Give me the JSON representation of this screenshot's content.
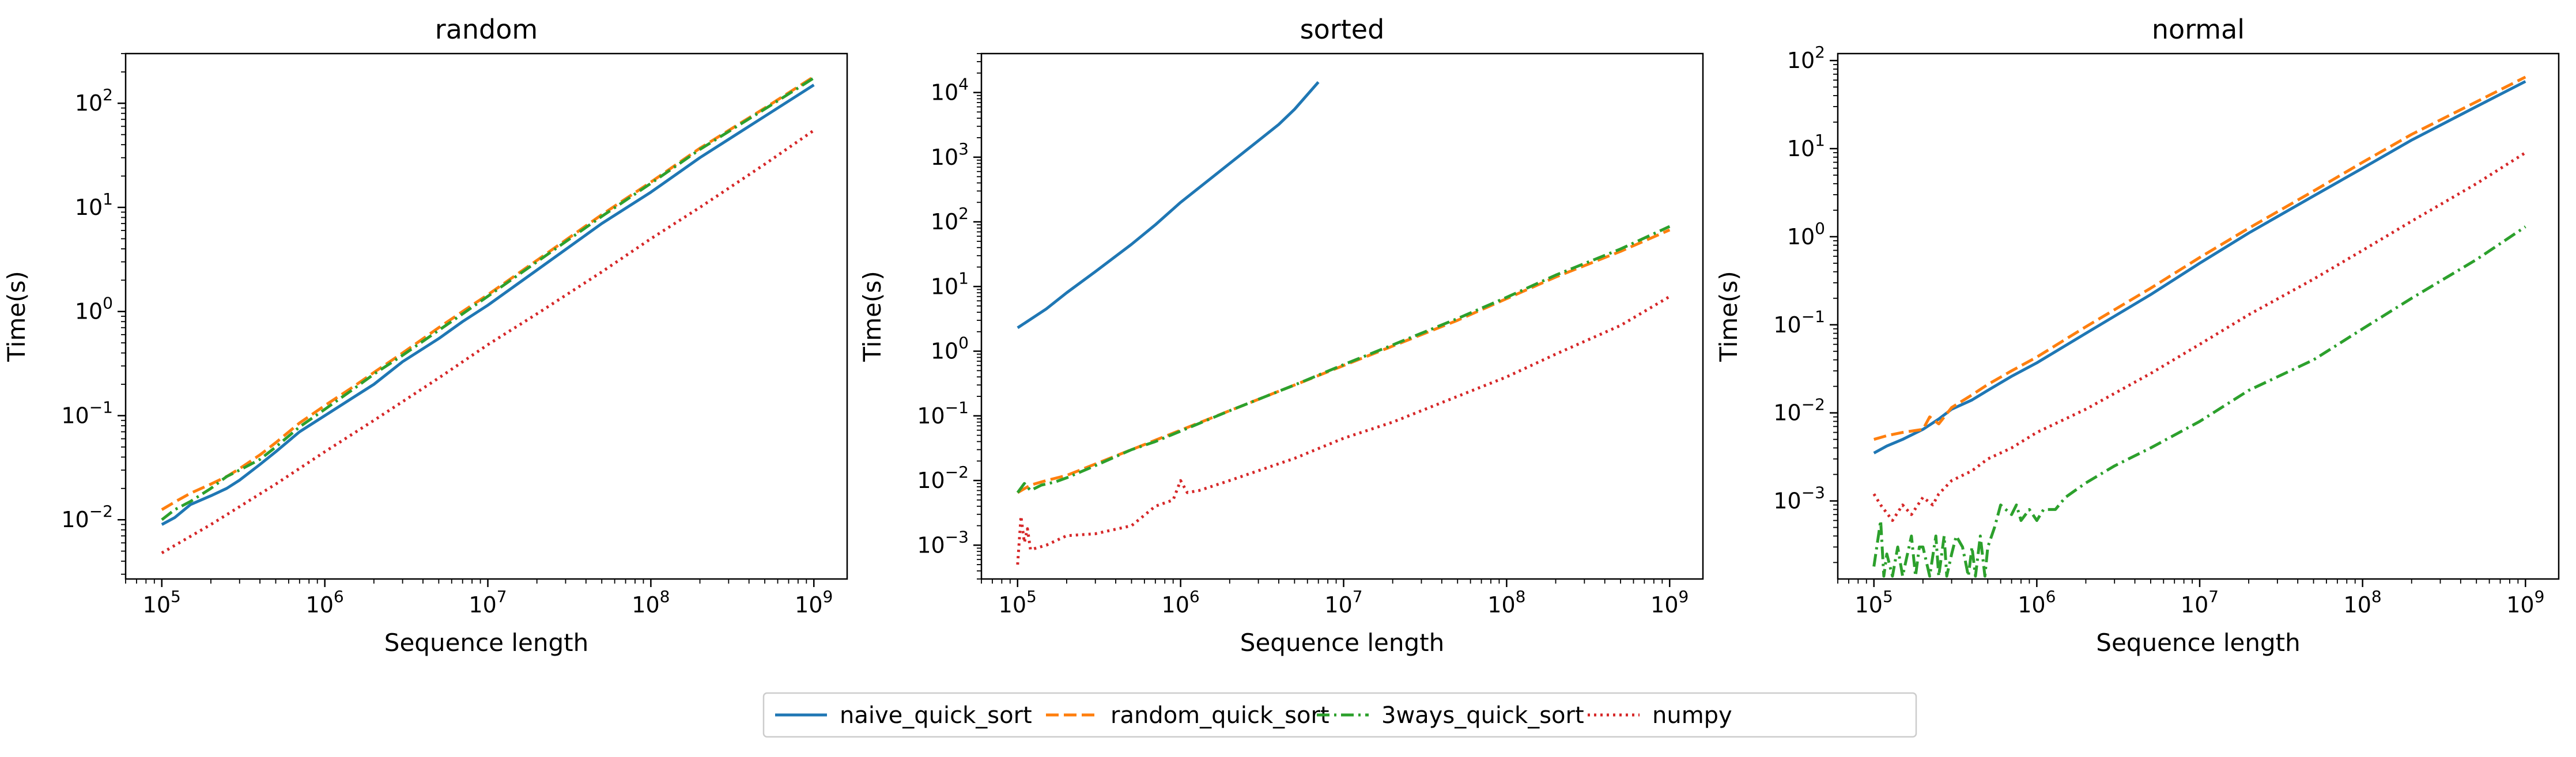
{
  "legend": {
    "placement": "bottom-center",
    "items": [
      {
        "label": "naive_quick_sort",
        "color": "#1f77b4",
        "dash": "solid"
      },
      {
        "label": "random_quick_sort",
        "color": "#ff7f0e",
        "dash": "dashed"
      },
      {
        "label": "3ways_quick_sort",
        "color": "#2ca02c",
        "dash": "dashdot"
      },
      {
        "label": "numpy",
        "color": "#d62728",
        "dash": "dotted"
      }
    ]
  },
  "chart_data": [
    {
      "type": "line",
      "title": "random",
      "xlabel": "Sequence length",
      "ylabel": "Time(s)",
      "xscale": "log",
      "yscale": "log",
      "xlim": [
        60000,
        1600000000
      ],
      "ylim": [
        0.0027,
        300
      ],
      "xticks": [
        100000,
        1000000,
        10000000,
        100000000,
        1000000000
      ],
      "xtick_labels": [
        "10^5",
        "10^6",
        "10^7",
        "10^8",
        "10^9"
      ],
      "yticks": [
        0.01,
        0.1,
        1,
        10,
        100
      ],
      "ytick_labels": [
        "10^-2",
        "10^-1",
        "10^0",
        "10^1",
        "10^2"
      ],
      "grid": false,
      "series": [
        {
          "name": "naive_quick_sort",
          "x": [
            100000,
            120000,
            150000,
            200000,
            250000,
            300000,
            400000,
            500000,
            700000,
            1000000,
            1500000,
            2000000,
            3000000,
            5000000,
            7000000,
            10000000,
            20000000,
            50000000,
            100000000,
            200000000,
            500000000,
            1000000000
          ],
          "y": [
            0.009,
            0.0105,
            0.014,
            0.017,
            0.02,
            0.024,
            0.034,
            0.045,
            0.07,
            0.1,
            0.15,
            0.2,
            0.33,
            0.55,
            0.8,
            1.15,
            2.5,
            7.0,
            14.0,
            30.0,
            75.0,
            150.0
          ]
        },
        {
          "name": "random_quick_sort",
          "x": [
            100000,
            120000,
            150000,
            200000,
            250000,
            300000,
            400000,
            500000,
            700000,
            1000000,
            1500000,
            2000000,
            3000000,
            5000000,
            7000000,
            10000000,
            20000000,
            50000000,
            100000000,
            200000000,
            500000000,
            1000000000
          ],
          "y": [
            0.0125,
            0.0148,
            0.018,
            0.022,
            0.026,
            0.031,
            0.042,
            0.055,
            0.085,
            0.125,
            0.19,
            0.26,
            0.4,
            0.7,
            1.0,
            1.45,
            3.1,
            8.5,
            17.5,
            37.0,
            90.0,
            180.0
          ]
        },
        {
          "name": "3ways_quick_sort",
          "x": [
            100000,
            120000,
            150000,
            200000,
            250000,
            300000,
            400000,
            500000,
            700000,
            1000000,
            1500000,
            2000000,
            3000000,
            5000000,
            7000000,
            10000000,
            20000000,
            50000000,
            100000000,
            200000000,
            500000000,
            1000000000
          ],
          "y": [
            0.01,
            0.0125,
            0.015,
            0.02,
            0.026,
            0.03,
            0.038,
            0.05,
            0.078,
            0.115,
            0.18,
            0.25,
            0.38,
            0.66,
            0.95,
            1.4,
            3.0,
            8.2,
            17.0,
            36.0,
            88.0,
            175.0
          ]
        },
        {
          "name": "numpy",
          "x": [
            100000,
            200000,
            500000,
            1000000,
            2000000,
            5000000,
            10000000,
            20000000,
            50000000,
            100000000,
            200000000,
            500000000,
            1000000000
          ],
          "y": [
            0.0048,
            0.009,
            0.022,
            0.045,
            0.09,
            0.23,
            0.48,
            0.95,
            2.4,
            5.0,
            10.0,
            26.0,
            55.0
          ]
        }
      ]
    },
    {
      "type": "line",
      "title": "sorted",
      "xlabel": "Sequence length",
      "ylabel": "Time(s)",
      "xscale": "log",
      "yscale": "log",
      "xlim": [
        60000,
        1600000000
      ],
      "ylim": [
        0.0003,
        40000
      ],
      "xticks": [
        100000,
        1000000,
        10000000,
        100000000,
        1000000000
      ],
      "xtick_labels": [
        "10^5",
        "10^6",
        "10^7",
        "10^8",
        "10^9"
      ],
      "yticks": [
        0.001,
        0.01,
        0.1,
        1,
        10,
        100,
        1000,
        10000
      ],
      "ytick_labels": [
        "10^-3",
        "10^-2",
        "10^-1",
        "10^0",
        "10^1",
        "10^2",
        "10^3",
        "10^4"
      ],
      "grid": false,
      "series": [
        {
          "name": "naive_quick_sort",
          "x": [
            100000,
            150000,
            200000,
            300000,
            500000,
            700000,
            1000000,
            1500000,
            2000000,
            3000000,
            4000000,
            5000000,
            7000000
          ],
          "y": [
            2.3,
            4.5,
            8.0,
            17.0,
            45.0,
            90.0,
            200.0,
            450.0,
            800.0,
            1800.0,
            3200.0,
            5500.0,
            14500.0
          ]
        },
        {
          "name": "random_quick_sort",
          "x": [
            100000,
            120000,
            150000,
            200000,
            300000,
            500000,
            700000,
            1000000,
            2000000,
            5000000,
            10000000,
            20000000,
            50000000,
            100000000,
            200000000,
            500000000,
            1000000000
          ],
          "y": [
            0.0065,
            0.0085,
            0.01,
            0.012,
            0.018,
            0.03,
            0.042,
            0.06,
            0.12,
            0.3,
            0.6,
            1.2,
            3.0,
            6.5,
            14.0,
            35.0,
            75.0
          ]
        },
        {
          "name": "3ways_quick_sort",
          "x": [
            100000,
            110000,
            120000,
            140000,
            170000,
            200000,
            300000,
            500000,
            700000,
            1000000,
            2000000,
            5000000,
            10000000,
            20000000,
            50000000,
            100000000,
            200000000,
            500000000,
            1000000000
          ],
          "y": [
            0.0065,
            0.009,
            0.007,
            0.0085,
            0.0095,
            0.011,
            0.017,
            0.03,
            0.04,
            0.058,
            0.12,
            0.3,
            0.62,
            1.25,
            3.2,
            6.8,
            15.0,
            38.0,
            85.0
          ]
        },
        {
          "name": "numpy",
          "x": [
            100000,
            105000,
            110000,
            115000,
            120000,
            130000,
            150000,
            200000,
            300000,
            500000,
            700000,
            900000,
            1000000,
            1100000,
            1300000,
            2000000,
            5000000,
            10000000,
            20000000,
            50000000,
            100000000,
            200000000,
            500000000,
            1000000000
          ],
          "y": [
            0.0005,
            0.0028,
            0.0011,
            0.0018,
            0.00085,
            0.0009,
            0.001,
            0.0014,
            0.0015,
            0.002,
            0.004,
            0.005,
            0.01,
            0.0065,
            0.007,
            0.01,
            0.022,
            0.045,
            0.08,
            0.2,
            0.4,
            0.9,
            2.5,
            7.0
          ]
        }
      ]
    },
    {
      "type": "line",
      "title": "normal",
      "xlabel": "Sequence length",
      "ylabel": "Time(s)",
      "xscale": "log",
      "yscale": "log",
      "xlim": [
        60000,
        1600000000
      ],
      "ylim": [
        0.00013,
        120
      ],
      "xticks": [
        100000,
        1000000,
        10000000,
        100000000,
        1000000000
      ],
      "xtick_labels": [
        "10^5",
        "10^6",
        "10^7",
        "10^8",
        "10^9"
      ],
      "yticks": [
        0.001,
        0.01,
        0.1,
        1,
        10,
        100
      ],
      "ytick_labels": [
        "10^-3",
        "10^-2",
        "10^-1",
        "10^0",
        "10^1",
        "10^2"
      ],
      "grid": false,
      "series": [
        {
          "name": "naive_quick_sort",
          "x": [
            100000,
            120000,
            150000,
            200000,
            250000,
            300000,
            400000,
            500000,
            700000,
            1000000,
            2000000,
            5000000,
            10000000,
            20000000,
            50000000,
            100000000,
            200000000,
            500000000,
            1000000000
          ],
          "y": [
            0.0035,
            0.0042,
            0.005,
            0.0065,
            0.0085,
            0.011,
            0.014,
            0.018,
            0.026,
            0.037,
            0.08,
            0.22,
            0.5,
            1.1,
            2.9,
            6.0,
            12.5,
            30.0,
            58.0
          ]
        },
        {
          "name": "random_quick_sort",
          "x": [
            100000,
            120000,
            150000,
            200000,
            220000,
            250000,
            300000,
            400000,
            500000,
            700000,
            1000000,
            2000000,
            5000000,
            10000000,
            20000000,
            50000000,
            100000000,
            200000000,
            500000000,
            1000000000
          ],
          "y": [
            0.005,
            0.0055,
            0.006,
            0.0065,
            0.009,
            0.0075,
            0.0115,
            0.016,
            0.021,
            0.03,
            0.043,
            0.095,
            0.26,
            0.58,
            1.25,
            3.3,
            7.0,
            14.5,
            34.0,
            65.0
          ]
        },
        {
          "name": "3ways_quick_sort",
          "x": [
            100000,
            110000,
            115000,
            120000,
            130000,
            140000,
            150000,
            170000,
            180000,
            190000,
            200000,
            220000,
            240000,
            250000,
            270000,
            280000,
            300000,
            320000,
            350000,
            380000,
            400000,
            420000,
            450000,
            480000,
            500000,
            550000,
            600000,
            700000,
            750000,
            800000,
            900000,
            1000000,
            1100000,
            1300000,
            1500000,
            2000000,
            3000000,
            5000000,
            10000000,
            20000000,
            50000000,
            100000000,
            200000000,
            500000000,
            1000000000
          ],
          "y": [
            0.00018,
            0.0006,
            0.00014,
            0.00025,
            0.00014,
            0.0003,
            0.00014,
            0.0004,
            0.00014,
            0.0003,
            0.0003,
            0.00014,
            0.0004,
            0.00014,
            0.0004,
            0.00014,
            0.00025,
            0.0004,
            0.0003,
            0.00014,
            0.0003,
            0.00014,
            0.0004,
            0.00014,
            0.0003,
            0.0005,
            0.0009,
            0.0007,
            0.0009,
            0.0006,
            0.0008,
            0.0006,
            0.0008,
            0.0008,
            0.0011,
            0.0016,
            0.0025,
            0.004,
            0.008,
            0.018,
            0.04,
            0.09,
            0.2,
            0.55,
            1.3
          ]
        },
        {
          "name": "numpy",
          "x": [
            100000,
            110000,
            130000,
            150000,
            170000,
            200000,
            230000,
            250000,
            300000,
            400000,
            500000,
            700000,
            1000000,
            2000000,
            5000000,
            10000000,
            20000000,
            50000000,
            100000000,
            200000000,
            500000000,
            1000000000
          ],
          "y": [
            0.0012,
            0.0009,
            0.0006,
            0.0009,
            0.0007,
            0.0011,
            0.0009,
            0.0012,
            0.0017,
            0.0022,
            0.003,
            0.004,
            0.006,
            0.011,
            0.028,
            0.06,
            0.13,
            0.33,
            0.7,
            1.5,
            4.0,
            9.0
          ]
        }
      ]
    }
  ]
}
